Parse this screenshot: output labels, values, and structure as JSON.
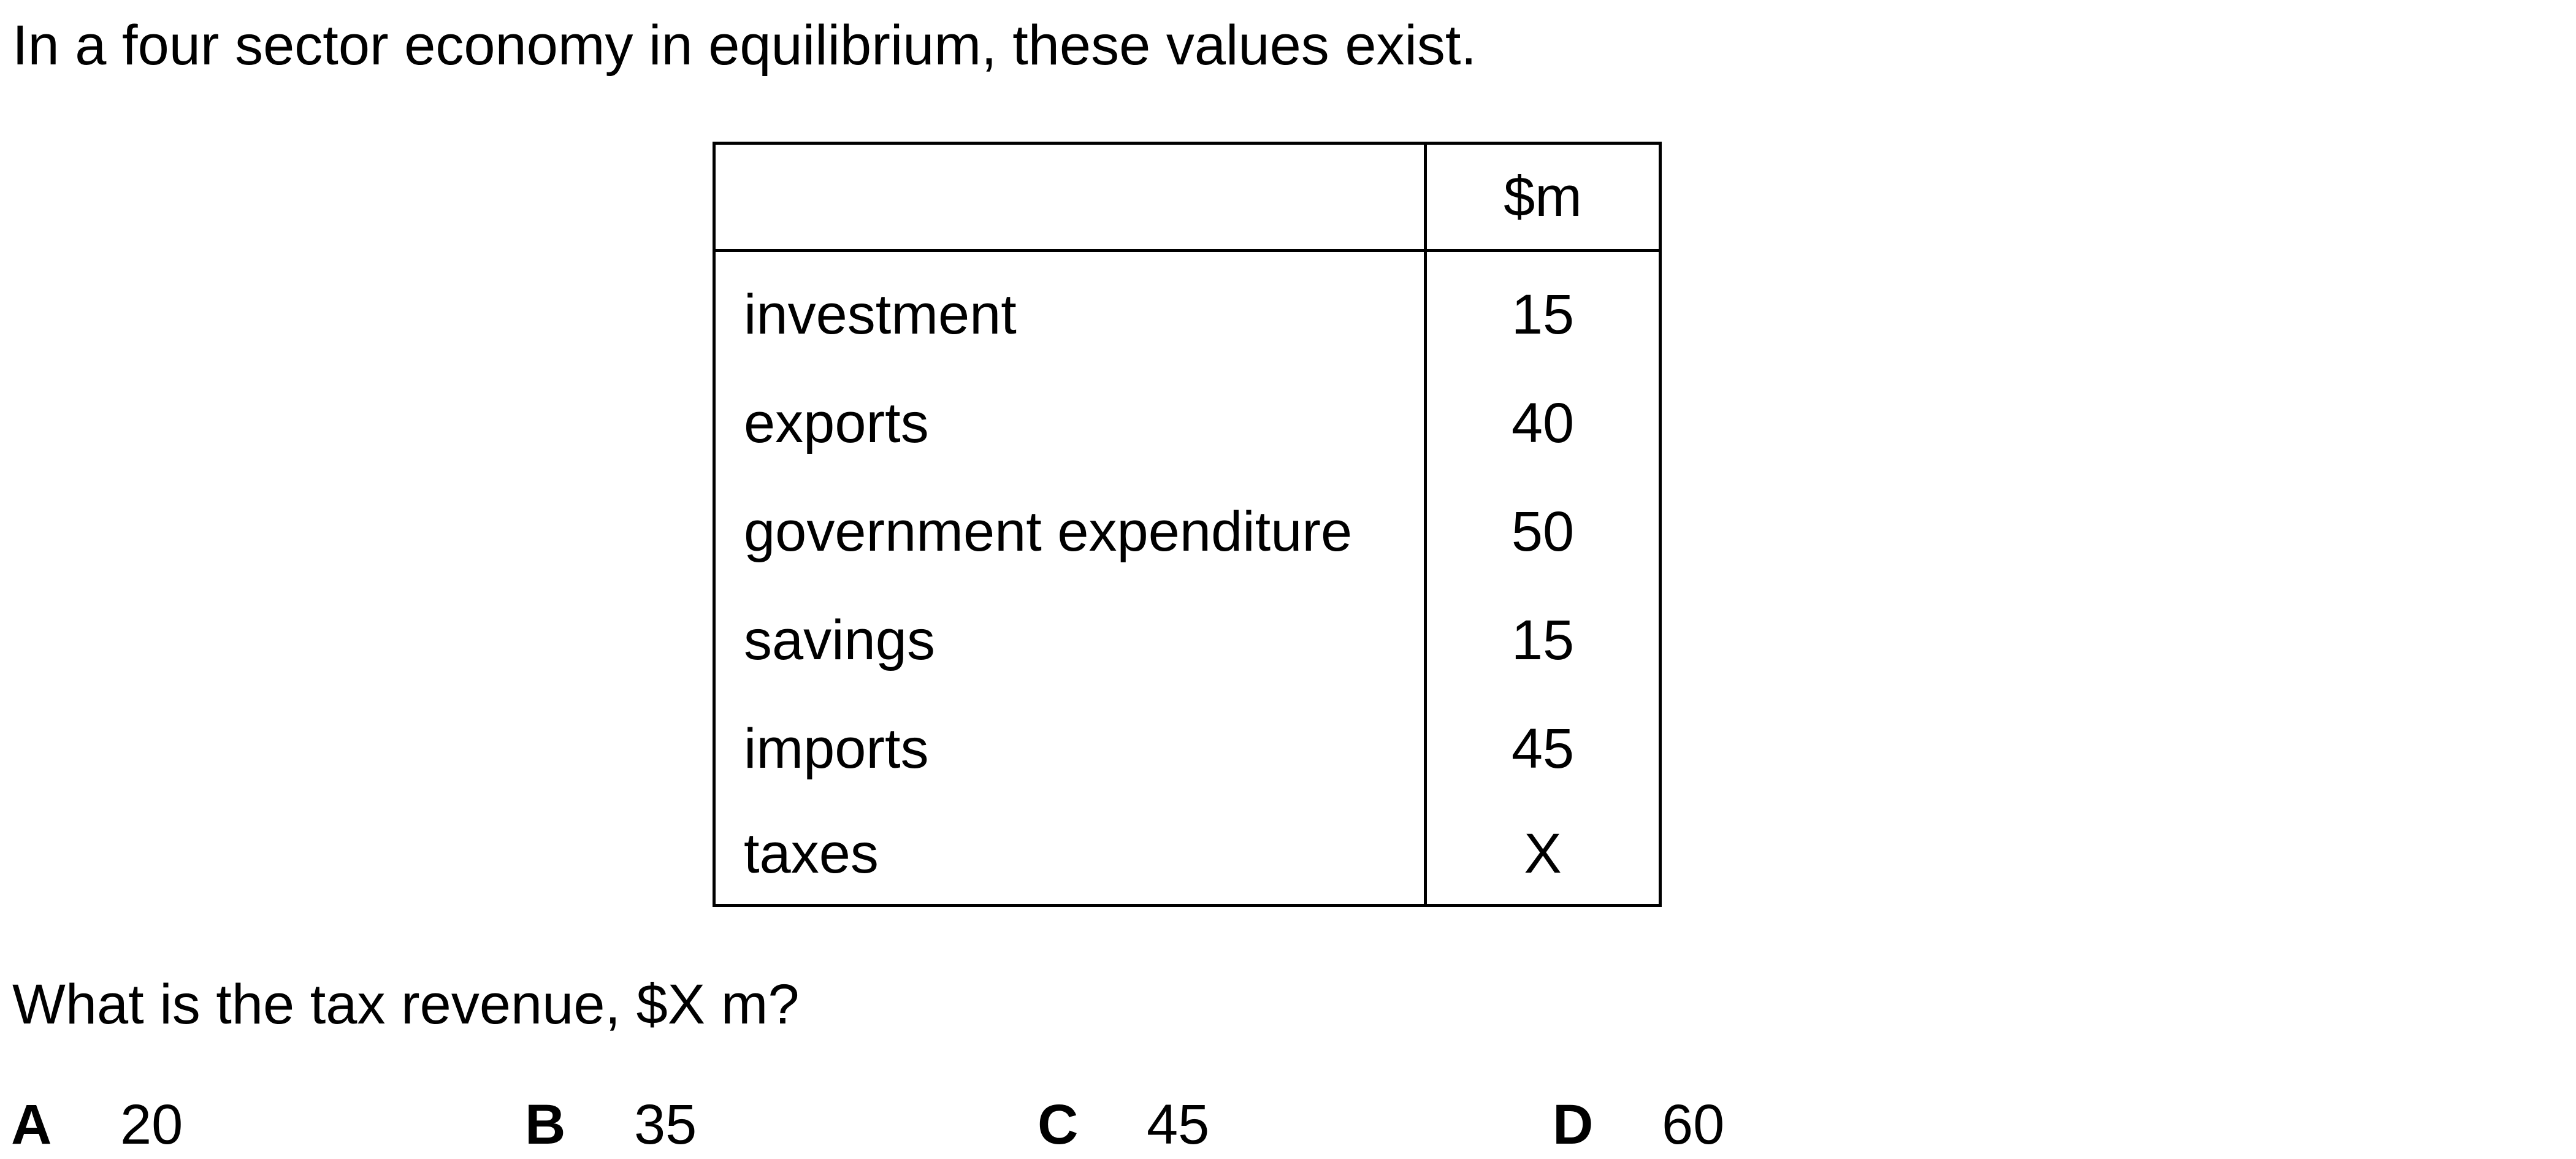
{
  "intro": "In a four sector economy in equilibrium, these values exist.",
  "table": {
    "header": [
      "",
      "$m"
    ],
    "rows": [
      {
        "label": "investment",
        "value": "15"
      },
      {
        "label": "exports",
        "value": "40"
      },
      {
        "label": "government expenditure",
        "value": "50"
      },
      {
        "label": "savings",
        "value": "15"
      },
      {
        "label": "imports",
        "value": "45"
      },
      {
        "label": "taxes",
        "value": "X"
      }
    ]
  },
  "question": "What is the tax revenue, $X m?",
  "options": [
    {
      "letter": "A",
      "text": "20"
    },
    {
      "letter": "B",
      "text": "35"
    },
    {
      "letter": "C",
      "text": "45"
    },
    {
      "letter": "D",
      "text": "60"
    }
  ]
}
